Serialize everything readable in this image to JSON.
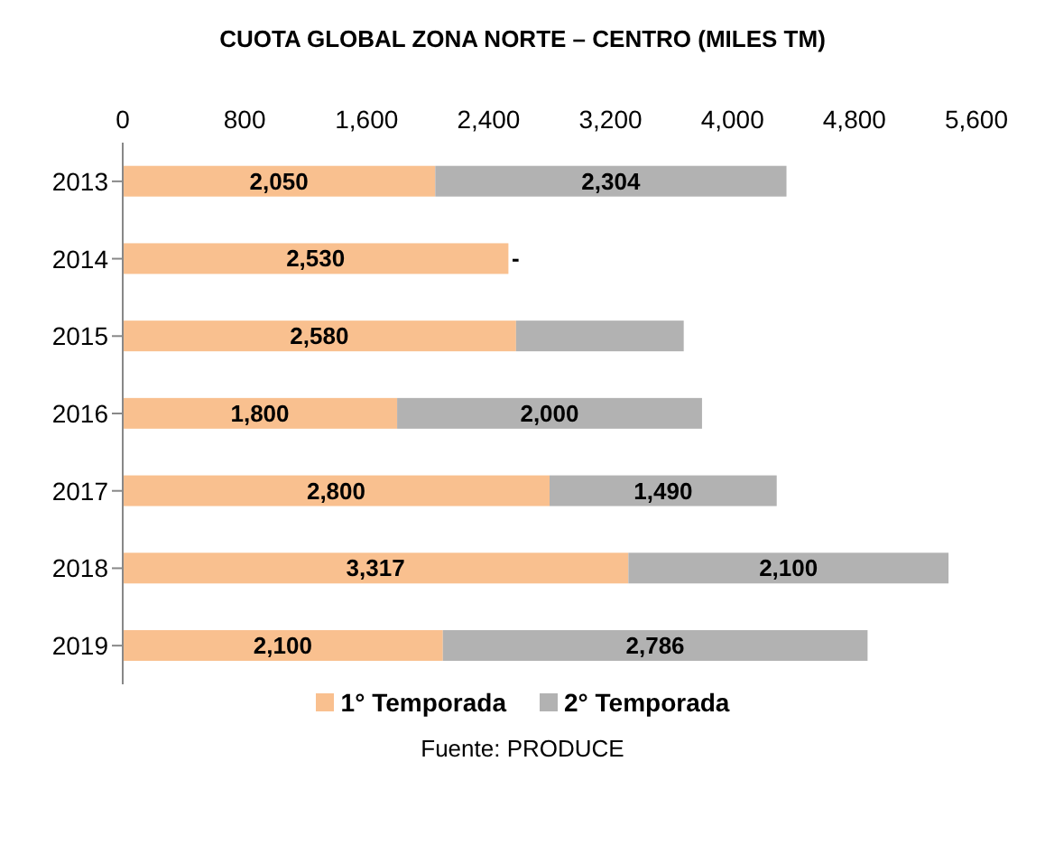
{
  "chart_data": {
    "type": "bar",
    "orientation": "horizontal",
    "stacked": true,
    "title": "CUOTA GLOBAL ZONA NORTE – CENTRO (MILES TM)",
    "categories": [
      "2013",
      "2014",
      "2015",
      "2016",
      "2017",
      "2018",
      "2019"
    ],
    "series": [
      {
        "name": "1° Temporada",
        "color": "#f9c08f",
        "values": [
          2050,
          2530,
          2580,
          1800,
          2800,
          3317,
          2100
        ],
        "value_labels": [
          "2,050",
          "2,530",
          "2,580",
          "1,800",
          "2,800",
          "3,317",
          "2,100"
        ]
      },
      {
        "name": "2° Temporada",
        "color": "#b2b2b2",
        "values": [
          2304,
          0,
          1100,
          2000,
          1490,
          2100,
          2786
        ],
        "value_labels": [
          "2,304",
          "-",
          null,
          "2,000",
          "1,490",
          "2,100",
          "2,786"
        ]
      }
    ],
    "xlim": [
      0,
      5600
    ],
    "xticks": [
      0,
      {
        "value": 800,
        "label": "800"
      },
      {
        "value": 1600,
        "label": "1,600"
      },
      {
        "value": 2400,
        "label": "2,400"
      },
      {
        "value": 3200,
        "label": "3,200"
      },
      {
        "value": 4000,
        "label": "4,000"
      },
      {
        "value": 4800,
        "label": "4,800"
      },
      {
        "value": 5600,
        "label": "5,600"
      }
    ],
    "grid": false,
    "legend": "bottom",
    "annotations": [
      "Fuente: PRODUCE"
    ]
  }
}
